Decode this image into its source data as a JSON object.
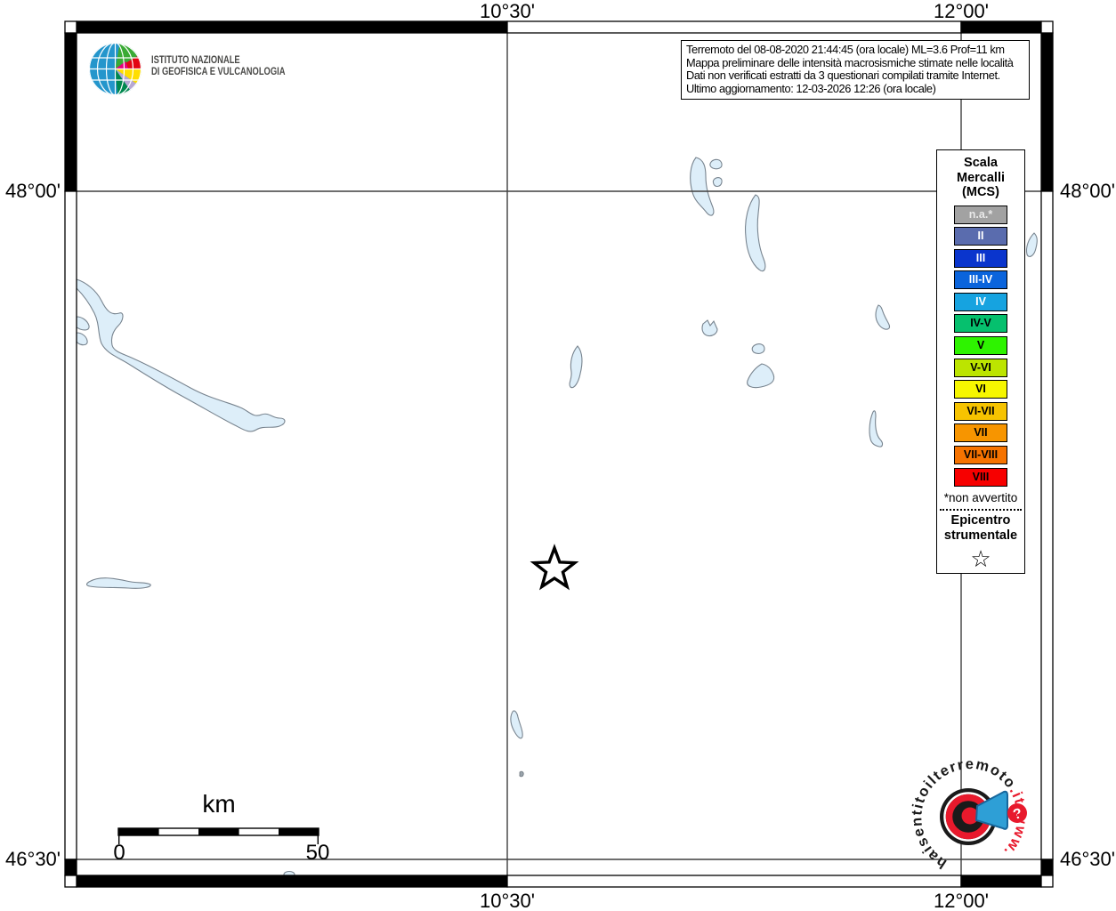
{
  "coords": {
    "top": [
      "10°30'",
      "12°00'"
    ],
    "bottom": [
      "10°30'",
      "12°00'"
    ],
    "left": [
      "48°00'",
      "46°30'"
    ],
    "right": [
      "48°00'",
      "46°30'"
    ]
  },
  "ingv": {
    "line1": "ISTITUTO NAZIONALE",
    "line2": "DI GEOFISICA E VULCANOLOGIA"
  },
  "info": {
    "lines": [
      "Terremoto del 08-08-2020 21:44:45 (ora locale) ML=3.6 Prof=11 km",
      "Mappa preliminare delle intensità macrosismiche stimate nelle località",
      "Dati non verificati estratti da 3 questionari compilati tramite Internet.",
      "Ultimo aggiornamento: 12-03-2026 12:26 (ora locale)"
    ]
  },
  "legend": {
    "title": [
      "Scala",
      "Mercalli",
      "(MCS)"
    ],
    "items": [
      {
        "label": "n.a.*",
        "color": "#a2a2a2",
        "text": "#e8e8e8"
      },
      {
        "label": "II",
        "color": "#5a6cae",
        "text": "#ffffff"
      },
      {
        "label": "III",
        "color": "#0a35cd",
        "text": "#ffffff"
      },
      {
        "label": "III-IV",
        "color": "#0a64dc",
        "text": "#ffffff"
      },
      {
        "label": "IV",
        "color": "#16a3e0",
        "text": "#ffffff"
      },
      {
        "label": "IV-V",
        "color": "#06c06e",
        "text": "#000000"
      },
      {
        "label": "V",
        "color": "#2ef300",
        "text": "#000000"
      },
      {
        "label": "V-VI",
        "color": "#bce400",
        "text": "#000000"
      },
      {
        "label": "VI",
        "color": "#f6f600",
        "text": "#000000"
      },
      {
        "label": "VI-VII",
        "color": "#f6c300",
        "text": "#000000"
      },
      {
        "label": "VII",
        "color": "#f79500",
        "text": "#000000"
      },
      {
        "label": "VII-VIII",
        "color": "#f67300",
        "text": "#000000"
      },
      {
        "label": "VIII",
        "color": "#f70000",
        "text": "#000000"
      }
    ],
    "footnote": "*non avvertito",
    "epicenter": [
      "Epicentro",
      "strumentale"
    ],
    "star": "☆"
  },
  "scalebar": {
    "unit": "km",
    "start": "0",
    "end": "50"
  },
  "watermark": {
    "main": "haisentitoilterremoto",
    "tld": ".it",
    "www": "www.",
    "question": "?"
  }
}
